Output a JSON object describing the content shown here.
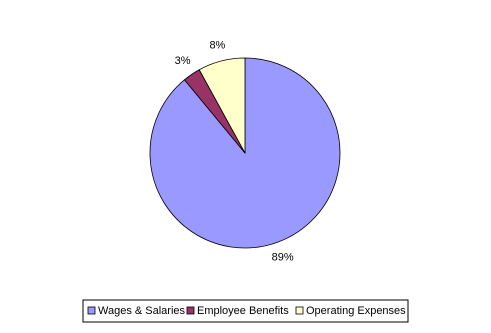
{
  "chart_data": {
    "type": "pie",
    "categories": [
      "Wages & Salaries",
      "Employee Benefits",
      "Operating Expenses"
    ],
    "values": [
      89,
      3,
      8
    ],
    "value_labels": [
      "89%",
      "3%",
      "8%"
    ],
    "colors": [
      "#9999ff",
      "#993366",
      "#ffffcc"
    ],
    "legend": "bottom"
  }
}
